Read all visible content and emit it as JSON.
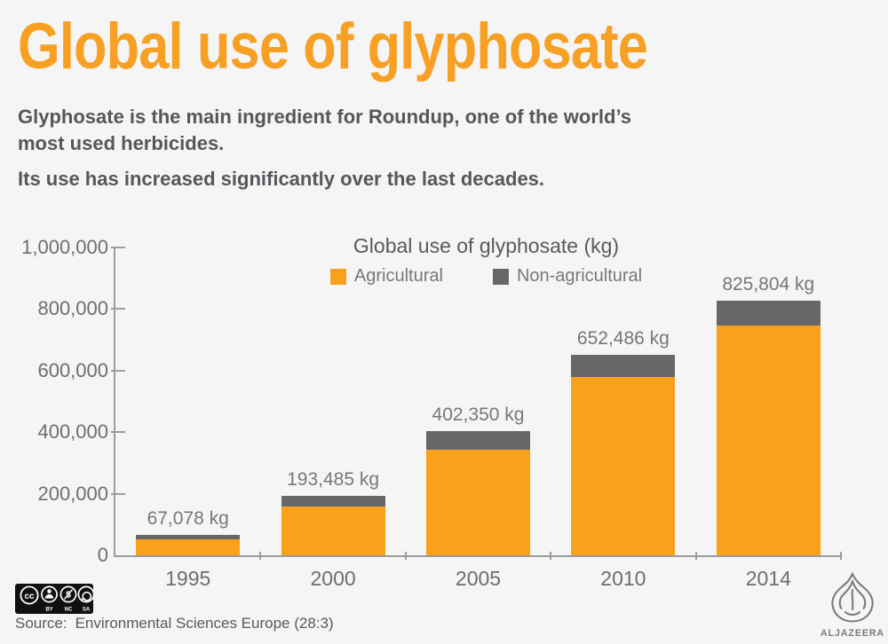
{
  "title": "Global use of glyphosate",
  "intro": {
    "p1": "Glyphosate is the main ingredient for Roundup, one of the world’s\nmost used herbicides.",
    "p2": "Its use has increased significantly over the last decades."
  },
  "chart_data": {
    "type": "bar",
    "stacked": true,
    "title": "Global use of glyphosate (kg)",
    "legend_position": "top",
    "grid": false,
    "categories": [
      "1995",
      "2000",
      "2005",
      "2010",
      "2014"
    ],
    "series": [
      {
        "name": "Agricultural",
        "color": "#F9A11B",
        "values": [
          51078,
          157385,
          341790,
          578124,
          746580
        ]
      },
      {
        "name": "Non-agricultural",
        "color": "#67676A",
        "values": [
          16000,
          36100,
          60560,
          74362,
          79224
        ]
      }
    ],
    "totals": [
      67078,
      193485,
      402350,
      652486,
      825804
    ],
    "total_labels": [
      "67,078 kg",
      "193,485 kg",
      "402,350 kg",
      "652,486 kg",
      "825,804 kg"
    ],
    "xlabel": "",
    "ylabel": "",
    "ylim": [
      0,
      1000000
    ],
    "y_ticks": [
      {
        "label": "1,000,000",
        "value": 1000000
      },
      {
        "label": "800,000",
        "value": 800000
      },
      {
        "label": "600,000",
        "value": 600000
      },
      {
        "label": "400,000",
        "value": 400000
      },
      {
        "label": "200,000",
        "value": 200000
      },
      {
        "label": "0",
        "value": 0
      }
    ]
  },
  "footer": {
    "source_label": "Source:",
    "source_text": "Environmental Sciences Europe (28:3)",
    "license": {
      "cc_glyph": "cc",
      "nc_glyph": "$",
      "by": "BY",
      "nc": "NC",
      "sa": "SA"
    },
    "brand_name": "ALJAZEERA"
  },
  "colors": {
    "background": "#F5F5F6",
    "title_orange": "#F7A024",
    "bar_orange": "#F9A11B",
    "bar_gray": "#67676A",
    "body_text": "#56575B",
    "axis_text": "#6D6E71",
    "muted_text": "#77787B",
    "axis_line": "#9B9C9E",
    "logo_gray": "#7A7B7E"
  }
}
